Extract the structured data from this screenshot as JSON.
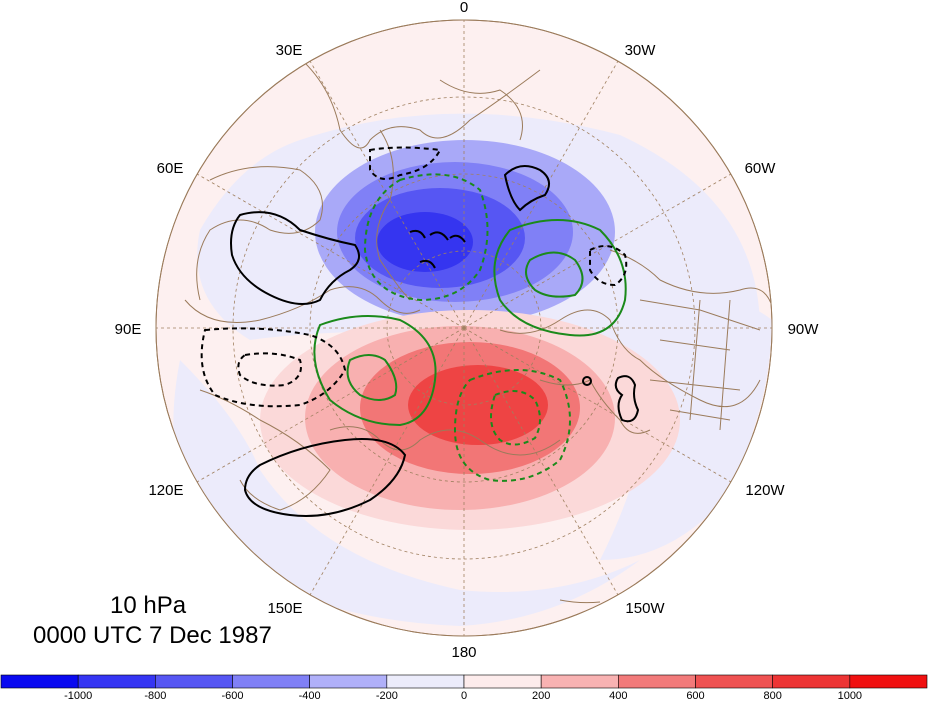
{
  "map": {
    "longitude_labels": [
      "0",
      "30W",
      "60W",
      "90W",
      "120W",
      "150W",
      "180",
      "150E",
      "120E",
      "90E",
      "60E",
      "30E"
    ],
    "shading_colors": {
      "negative_strong": "#3535f0",
      "negative_mid": "#6e6ef4",
      "negative_light": "#a9a9f8",
      "negative_faint": "#ecebfb",
      "positive_faint": "#fdecec",
      "positive_light": "#f8b0b0",
      "positive_mid": "#f27676",
      "positive_strong": "#ee4444"
    },
    "contour_colors": {
      "positive": "#1b8a1b",
      "negative": "#000000"
    },
    "coastline_color": "#9b7b5b",
    "graticule_color": "#a08060"
  },
  "title": {
    "level": "10 hPa",
    "time": "0000 UTC 7 Dec 1987"
  },
  "colorbar": {
    "tick_labels": [
      "-1000",
      "-800",
      "-600",
      "-400",
      "-200",
      "0",
      "200",
      "400",
      "600",
      "800",
      "1000"
    ],
    "colors": [
      "#0a0af0",
      "#3535f3",
      "#5656f3",
      "#8080f6",
      "#b0b0f9",
      "#ececfb",
      "#fdecec",
      "#f8b2b2",
      "#f27a7a",
      "#ef5252",
      "#ed3434",
      "#f01010"
    ]
  }
}
